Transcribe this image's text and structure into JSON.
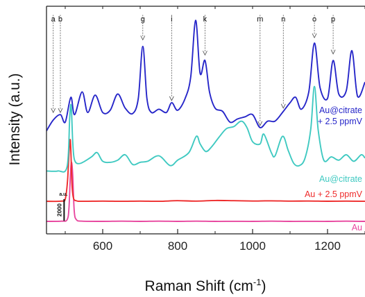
{
  "chart_data": {
    "type": "line",
    "title": "",
    "xlabel_main": "Raman Shift (cm",
    "xlabel_sup": "-1",
    "xlabel_close": ")",
    "ylabel": "Intensity (a.u.)",
    "xlim": [
      450,
      1300
    ],
    "ylim": [
      0,
      21000
    ],
    "x_ticks": [
      600,
      800,
      1000,
      1200
    ],
    "x_tick_labels": [
      "600",
      "800",
      "1000",
      "1200"
    ],
    "scale_bar": {
      "value": "2000",
      "unit": "a.u.",
      "size": 2000
    },
    "peak_markers": [
      {
        "label": "a",
        "x": 468,
        "y_top": 20200,
        "y_tip": 11200
      },
      {
        "label": "b",
        "x": 487,
        "y_top": 20200,
        "y_tip": 11200
      },
      {
        "label": "g",
        "x": 707,
        "y_top": 20200,
        "y_tip": 17900
      },
      {
        "label": "i",
        "x": 784,
        "y_top": 20200,
        "y_tip": 12300
      },
      {
        "label": "k",
        "x": 873,
        "y_top": 20200,
        "y_tip": 16500
      },
      {
        "label": "m",
        "x": 1020,
        "y_top": 20200,
        "y_tip": 10000
      },
      {
        "label": "n",
        "x": 1082,
        "y_top": 20200,
        "y_tip": 11600
      },
      {
        "label": "o",
        "x": 1165,
        "y_top": 20200,
        "y_tip": 18100
      },
      {
        "label": "p",
        "x": 1215,
        "y_top": 20200,
        "y_tip": 16600
      }
    ],
    "series": [
      {
        "name": "Au",
        "label_lines": [
          "Au"
        ],
        "color": "#e8479f",
        "x": [
          450,
          490,
          505,
          510,
          514,
          517,
          520,
          524,
          530,
          545,
          600,
          650,
          700,
          750,
          800,
          850,
          900,
          950,
          1000,
          1050,
          1100,
          1150,
          1200,
          1250,
          1300
        ],
        "y": [
          1150,
          1170,
          1300,
          2400,
          5600,
          6600,
          5400,
          2100,
          1300,
          1170,
          1150,
          1170,
          1150,
          1170,
          1150,
          1170,
          1150,
          1160,
          1150,
          1170,
          1150,
          1160,
          1150,
          1170,
          1150
        ]
      },
      {
        "name": "Au + 2.5 ppmV",
        "label_lines": [
          "Au + 2.5 ppmV"
        ],
        "color": "#ee2b2b",
        "x": [
          450,
          490,
          500,
          506,
          510,
          513,
          515,
          518,
          522,
          530,
          545,
          600,
          650,
          700,
          750,
          800,
          850,
          900,
          950,
          1000,
          1050,
          1100,
          1150,
          1200,
          1250,
          1300
        ],
        "y": [
          3000,
          3020,
          3200,
          4800,
          7400,
          8700,
          7700,
          4600,
          3300,
          3050,
          3000,
          3020,
          3000,
          3020,
          3000,
          3060,
          3020,
          3080,
          3060,
          3030,
          3050,
          3020,
          3030,
          3010,
          3020,
          3000
        ]
      },
      {
        "name": "Au@citrate",
        "label_lines": [
          "Au@citrate"
        ],
        "color": "#3fc9c1",
        "x": [
          450,
          480,
          505,
          512,
          516,
          520,
          525,
          540,
          570,
          585,
          600,
          620,
          640,
          660,
          680,
          700,
          720,
          750,
          780,
          800,
          830,
          850,
          860,
          875,
          890,
          910,
          930,
          950,
          970,
          985,
          1000,
          1020,
          1030,
          1050,
          1060,
          1080,
          1095,
          1110,
          1125,
          1140,
          1155,
          1165,
          1175,
          1190,
          1210,
          1230,
          1250,
          1270,
          1290,
          1300
        ],
        "y": [
          5800,
          5800,
          6200,
          10800,
          11800,
          8500,
          6800,
          6500,
          7100,
          7500,
          6700,
          6600,
          6800,
          7300,
          6400,
          6600,
          6700,
          7200,
          6300,
          6800,
          7500,
          9000,
          8300,
          7600,
          8000,
          8900,
          9700,
          9900,
          10400,
          9800,
          8500,
          8300,
          9200,
          7500,
          7200,
          9000,
          7700,
          6500,
          6300,
          7000,
          9600,
          13600,
          9600,
          6800,
          7100,
          6800,
          7300,
          6700,
          7300,
          7000
        ]
      },
      {
        "name": "Au@citrate + 2.5 ppmV",
        "label_lines": [
          "Au@citrate",
          "+ 2.5 ppmV"
        ],
        "color": "#2626c9",
        "x": [
          450,
          468,
          487,
          500,
          515,
          525,
          545,
          560,
          580,
          600,
          620,
          640,
          660,
          680,
          695,
          707,
          718,
          730,
          750,
          770,
          784,
          800,
          820,
          835,
          848,
          860,
          873,
          885,
          900,
          920,
          940,
          960,
          980,
          1000,
          1020,
          1040,
          1060,
          1082,
          1100,
          1115,
          1130,
          1150,
          1165,
          1180,
          1200,
          1215,
          1230,
          1250,
          1265,
          1280,
          1300
        ],
        "y": [
          9500,
          10500,
          11000,
          10300,
          12600,
          11000,
          13100,
          11200,
          12800,
          11200,
          11400,
          12900,
          11600,
          11100,
          12500,
          17300,
          12500,
          11200,
          11500,
          11200,
          12100,
          11400,
          12500,
          14500,
          19700,
          14800,
          16000,
          13100,
          11600,
          11300,
          10300,
          10600,
          10800,
          11000,
          9800,
          10400,
          10400,
          11300,
          12100,
          12600,
          11500,
          13100,
          17600,
          13500,
          12500,
          16000,
          12900,
          13200,
          16900,
          12700,
          14000
        ]
      }
    ]
  }
}
